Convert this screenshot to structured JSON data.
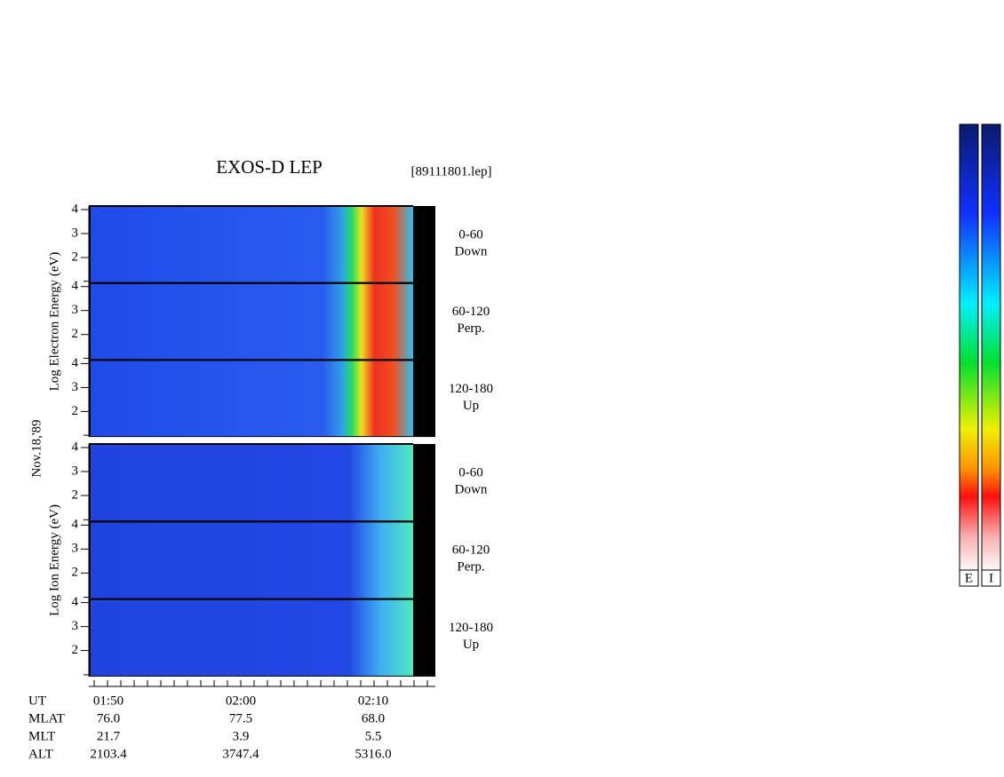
{
  "header": {
    "title": "EXOS-D LEP",
    "file": "[89111801.lep]"
  },
  "date": "Nov.18,'89",
  "electron": {
    "axis_label": "Log Electron Energy (eV)",
    "panels": [
      {
        "yticks": [
          "4",
          "3",
          "2"
        ],
        "angle": "0-60",
        "direction": "Down"
      },
      {
        "yticks": [
          "4",
          "3",
          "2"
        ],
        "angle": "60-120",
        "direction": "Perp."
      },
      {
        "yticks": [
          "4",
          "3",
          "2"
        ],
        "angle": "120-180",
        "direction": "Up"
      }
    ]
  },
  "ion": {
    "axis_label": "Log Ion Energy (eV)",
    "panels": [
      {
        "yticks": [
          "4",
          "3",
          "2"
        ],
        "angle": "0-60",
        "direction": "Down"
      },
      {
        "yticks": [
          "4",
          "3",
          "2"
        ],
        "angle": "60-120",
        "direction": "Perp."
      },
      {
        "yticks": [
          "4",
          "3",
          "2"
        ],
        "angle": "120-180",
        "direction": "Up"
      }
    ]
  },
  "time_axis": {
    "rows": [
      {
        "label": "UT",
        "values": [
          "01:50",
          "02:00",
          "02:10"
        ]
      },
      {
        "label": "MLAT",
        "values": [
          "76.0",
          "77.5",
          "68.0"
        ]
      },
      {
        "label": "MLT",
        "values": [
          "21.7",
          "3.9",
          "5.5"
        ]
      },
      {
        "label": "ALT",
        "values": [
          "2103.4",
          "3747.4",
          "5316.0"
        ]
      }
    ]
  },
  "colorbar": {
    "labels": [
      "E",
      "I"
    ]
  }
}
